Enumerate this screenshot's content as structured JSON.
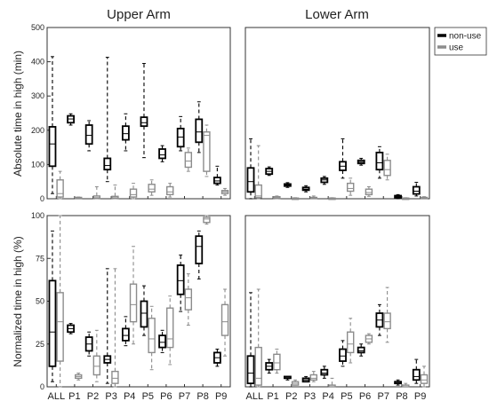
{
  "chart_data": {
    "type": "boxplot",
    "panel_titles": [
      "Upper Arm",
      "Lower Arm"
    ],
    "row_ylabels": [
      "Absolute time in high (min)",
      "Normalized time in high (%)"
    ],
    "categories": [
      "ALL",
      "P1",
      "P2",
      "P3",
      "P4",
      "P5",
      "P6",
      "P7",
      "P8",
      "P9"
    ],
    "legend": [
      {
        "name": "non-use",
        "color": "#000000"
      },
      {
        "name": "use",
        "color": "#8c8c8c"
      }
    ],
    "legend_placement": "top-right",
    "grid": false,
    "panels": [
      {
        "name": "upper-arm-absolute",
        "ylim": [
          0,
          500
        ],
        "yticks": [
          0,
          100,
          200,
          300,
          400,
          500
        ],
        "nonuse": [
          {
            "min": 15,
            "q1": 95,
            "median": 160,
            "q3": 210,
            "max": 415
          },
          {
            "min": 215,
            "q1": 222,
            "median": 233,
            "q3": 242,
            "max": 248
          },
          {
            "min": 140,
            "q1": 160,
            "median": 185,
            "q3": 215,
            "max": 228
          },
          {
            "min": 50,
            "q1": 85,
            "median": 97,
            "q3": 118,
            "max": 413
          },
          {
            "min": 140,
            "q1": 172,
            "median": 190,
            "q3": 212,
            "max": 248
          },
          {
            "min": 120,
            "q1": 212,
            "median": 222,
            "q3": 238,
            "max": 395
          },
          {
            "min": 108,
            "q1": 118,
            "median": 128,
            "q3": 145,
            "max": 155
          },
          {
            "min": 140,
            "q1": 152,
            "median": 180,
            "q3": 205,
            "max": 240
          },
          {
            "min": 135,
            "q1": 165,
            "median": 195,
            "q3": 232,
            "max": 283
          },
          {
            "min": 40,
            "q1": 45,
            "median": 52,
            "q3": 62,
            "max": 95
          }
        ],
        "use": [
          {
            "min": 0,
            "q1": 5,
            "median": 15,
            "q3": 55,
            "max": 80
          },
          {
            "min": 0,
            "q1": 1,
            "median": 2,
            "q3": 4,
            "max": 5
          },
          {
            "min": 0,
            "q1": 1,
            "median": 3,
            "q3": 8,
            "max": 35
          },
          {
            "min": 0,
            "q1": 1,
            "median": 3,
            "q3": 7,
            "max": 40
          },
          {
            "min": 0,
            "q1": 5,
            "median": 12,
            "q3": 28,
            "max": 45
          },
          {
            "min": 10,
            "q1": 20,
            "median": 28,
            "q3": 42,
            "max": 55
          },
          {
            "min": 5,
            "q1": 12,
            "median": 20,
            "q3": 35,
            "max": 45
          },
          {
            "min": 80,
            "q1": 92,
            "median": 110,
            "q3": 135,
            "max": 148
          },
          {
            "min": 65,
            "q1": 80,
            "median": 185,
            "q3": 195,
            "max": 215
          },
          {
            "min": 10,
            "q1": 15,
            "median": 20,
            "q3": 24,
            "max": 30
          }
        ]
      },
      {
        "name": "lower-arm-absolute",
        "ylim": [
          0,
          500
        ],
        "yticks": [],
        "nonuse": [
          {
            "min": 0,
            "q1": 20,
            "median": 50,
            "q3": 90,
            "max": 175
          },
          {
            "min": 68,
            "q1": 72,
            "median": 80,
            "q3": 88,
            "max": 93
          },
          {
            "min": 33,
            "q1": 37,
            "median": 40,
            "q3": 43,
            "max": 47
          },
          {
            "min": 20,
            "q1": 25,
            "median": 28,
            "q3": 33,
            "max": 38
          },
          {
            "min": 42,
            "q1": 48,
            "median": 55,
            "q3": 60,
            "max": 65
          },
          {
            "min": 60,
            "q1": 83,
            "median": 95,
            "q3": 108,
            "max": 175
          },
          {
            "min": 98,
            "q1": 103,
            "median": 107,
            "q3": 112,
            "max": 118
          },
          {
            "min": 60,
            "q1": 85,
            "median": 105,
            "q3": 135,
            "max": 152
          },
          {
            "min": 0,
            "q1": 3,
            "median": 6,
            "q3": 9,
            "max": 12
          },
          {
            "min": 8,
            "q1": 14,
            "median": 22,
            "q3": 35,
            "max": 48
          }
        ],
        "use": [
          {
            "min": 0,
            "q1": 3,
            "median": 8,
            "q3": 40,
            "max": 155
          },
          {
            "min": 0,
            "q1": 1,
            "median": 3,
            "q3": 6,
            "max": 8
          },
          {
            "min": 0,
            "q1": 0,
            "median": 1,
            "q3": 2,
            "max": 3
          },
          {
            "min": 0,
            "q1": 1,
            "median": 2,
            "q3": 4,
            "max": 8
          },
          {
            "min": 0,
            "q1": 0,
            "median": 1,
            "q3": 2,
            "max": 3
          },
          {
            "min": 10,
            "q1": 22,
            "median": 30,
            "q3": 45,
            "max": 60
          },
          {
            "min": 7,
            "q1": 12,
            "median": 18,
            "q3": 28,
            "max": 35
          },
          {
            "min": 55,
            "q1": 68,
            "median": 85,
            "q3": 112,
            "max": 130
          },
          {
            "min": 0,
            "q1": 0,
            "median": 1,
            "q3": 2,
            "max": 3
          },
          {
            "min": 0,
            "q1": 1,
            "median": 2,
            "q3": 4,
            "max": 6
          }
        ]
      },
      {
        "name": "upper-arm-normalized",
        "ylim": [
          0,
          100
        ],
        "yticks": [
          0,
          25,
          50,
          75,
          100
        ],
        "nonuse": [
          {
            "min": 3,
            "q1": 12,
            "median": 32,
            "q3": 62,
            "max": 91
          },
          {
            "min": 31,
            "q1": 32,
            "median": 34,
            "q3": 36,
            "max": 37
          },
          {
            "min": 18,
            "q1": 21,
            "median": 25,
            "q3": 29,
            "max": 32
          },
          {
            "min": 2,
            "q1": 14,
            "median": 16,
            "q3": 18,
            "max": 69
          },
          {
            "min": 24,
            "q1": 27,
            "median": 30,
            "q3": 34,
            "max": 41
          },
          {
            "min": 30,
            "q1": 35,
            "median": 43,
            "q3": 50,
            "max": 59
          },
          {
            "min": 20,
            "q1": 23,
            "median": 26,
            "q3": 30,
            "max": 33
          },
          {
            "min": 44,
            "q1": 54,
            "median": 62,
            "q3": 71,
            "max": 77
          },
          {
            "min": 63,
            "q1": 72,
            "median": 82,
            "q3": 88,
            "max": 91
          },
          {
            "min": 12,
            "q1": 14,
            "median": 17,
            "q3": 20,
            "max": 22
          }
        ],
        "use": [
          {
            "min": 0,
            "q1": 15,
            "median": 38,
            "q3": 55,
            "max": 100
          },
          {
            "min": 4,
            "q1": 5,
            "median": 6,
            "q3": 7,
            "max": 8
          },
          {
            "min": 3,
            "q1": 7,
            "median": 12,
            "q3": 18,
            "max": 33
          },
          {
            "min": 0,
            "q1": 2,
            "median": 5,
            "q3": 9,
            "max": 69
          },
          {
            "min": 25,
            "q1": 38,
            "median": 48,
            "q3": 60,
            "max": 82
          },
          {
            "min": 10,
            "q1": 20,
            "median": 28,
            "q3": 40,
            "max": 47
          },
          {
            "min": 13,
            "q1": 23,
            "median": 28,
            "q3": 46,
            "max": 53
          },
          {
            "min": 36,
            "q1": 45,
            "median": 52,
            "q3": 57,
            "max": 66
          },
          {
            "min": 95,
            "q1": 96,
            "median": 98,
            "q3": 99,
            "max": 100
          },
          {
            "min": 18,
            "q1": 30,
            "median": 38,
            "q3": 48,
            "max": 57
          }
        ]
      },
      {
        "name": "lower-arm-normalized",
        "ylim": [
          0,
          100
        ],
        "yticks": [],
        "nonuse": [
          {
            "min": 0,
            "q1": 2,
            "median": 8,
            "q3": 18,
            "max": 55
          },
          {
            "min": 8,
            "q1": 10,
            "median": 12,
            "q3": 14,
            "max": 16
          },
          {
            "min": 4,
            "q1": 5,
            "median": 5,
            "q3": 6,
            "max": 6
          },
          {
            "min": 3,
            "q1": 3,
            "median": 4,
            "q3": 5,
            "max": 6
          },
          {
            "min": 5,
            "q1": 7,
            "median": 8,
            "q3": 10,
            "max": 12
          },
          {
            "min": 12,
            "q1": 15,
            "median": 18,
            "q3": 22,
            "max": 27
          },
          {
            "min": 18,
            "q1": 20,
            "median": 21,
            "q3": 23,
            "max": 25
          },
          {
            "min": 30,
            "q1": 35,
            "median": 39,
            "q3": 43,
            "max": 48
          },
          {
            "min": 1,
            "q1": 2,
            "median": 3,
            "q3": 3,
            "max": 4
          },
          {
            "min": 2,
            "q1": 4,
            "median": 6,
            "q3": 10,
            "max": 16
          }
        ],
        "use": [
          {
            "min": 0,
            "q1": 1,
            "median": 5,
            "q3": 23,
            "max": 57
          },
          {
            "min": 8,
            "q1": 10,
            "median": 14,
            "q3": 19,
            "max": 22
          },
          {
            "min": 1,
            "q1": 1,
            "median": 2,
            "q3": 3,
            "max": 4
          },
          {
            "min": 3,
            "q1": 4,
            "median": 5,
            "q3": 7,
            "max": 9
          },
          {
            "min": 0,
            "q1": 0,
            "median": 1,
            "q3": 1,
            "max": 5
          },
          {
            "min": 14,
            "q1": 20,
            "median": 25,
            "q3": 32,
            "max": 40
          },
          {
            "min": 25,
            "q1": 26,
            "median": 28,
            "q3": 30,
            "max": 31
          },
          {
            "min": 26,
            "q1": 34,
            "median": 38,
            "q3": 43,
            "max": 58
          },
          {
            "min": 0,
            "q1": 0,
            "median": 1,
            "q3": 1,
            "max": 2
          },
          {
            "min": 0,
            "q1": 2,
            "median": 4,
            "q3": 7,
            "max": 12
          }
        ]
      }
    ]
  }
}
